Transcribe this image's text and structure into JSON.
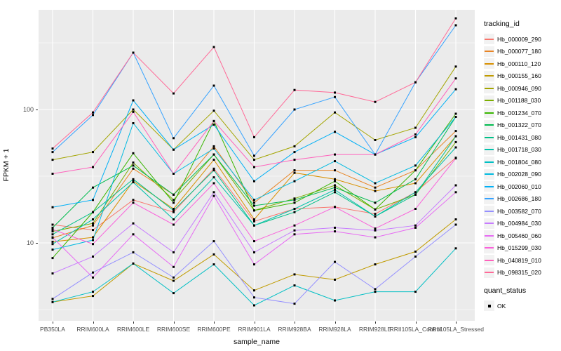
{
  "figure": {
    "x_axis_title": "sample_name",
    "y_axis_title": "FPKM + 1"
  },
  "chart_data": {
    "type": "line",
    "title": "",
    "xlabel": "sample_name",
    "ylabel": "FPKM + 1",
    "y_scale": "log10",
    "y_tick_labels": [
      "100",
      "10"
    ],
    "y_tick_values": [
      100,
      10
    ],
    "y_minor_values": [
      316.2,
      31.62,
      3.162
    ],
    "ylim": [
      2.6,
      560
    ],
    "grid": true,
    "legend_position": "right",
    "legend_title": "tracking_id",
    "point_shape": "filled-square",
    "point_color": "#000000",
    "panel_background": "#EBEBEB",
    "categories": [
      "PB350LA",
      "RRIM600LA",
      "RRIM600LE",
      "RRIM600SE",
      "RRIM600PE",
      "RRIM901LA",
      "RRIM928BA",
      "RRIM928LA",
      "RRIM928LE",
      "RRII105LA_Control",
      "RRII105LA_Stressed"
    ],
    "series": [
      {
        "name": "Hb_000009_290",
        "color": "#F8766D",
        "values": [
          13.7,
          12.5,
          21,
          17,
          36,
          14.5,
          18,
          18.6,
          16.5,
          24,
          43.5
        ]
      },
      {
        "name": "Hb_000077_180",
        "color": "#E88526",
        "values": [
          10.9,
          13.5,
          36,
          23,
          53,
          20,
          35,
          35,
          26,
          35,
          69
        ]
      },
      {
        "name": "Hb_000110_120",
        "color": "#D89000",
        "values": [
          10.2,
          11,
          29,
          18,
          42,
          15,
          33.5,
          30,
          24.5,
          28,
          63
        ]
      },
      {
        "name": "Hb_000155_160",
        "color": "#C09B00",
        "values": [
          3.6,
          4.0,
          7.0,
          5.2,
          8.2,
          4.4,
          5.8,
          5.3,
          6.9,
          8.6,
          15
        ]
      },
      {
        "name": "Hb_000946_090",
        "color": "#A3A500",
        "values": [
          42,
          48,
          100,
          50,
          98,
          42,
          53,
          95,
          59,
          73,
          210
        ]
      },
      {
        "name": "Hb_001188_030",
        "color": "#7CAE00",
        "values": [
          12.2,
          14,
          40,
          21,
          46,
          17.5,
          21.5,
          27,
          17.8,
          23,
          57
        ]
      },
      {
        "name": "Hb_001234_070",
        "color": "#39B600",
        "values": [
          7.7,
          17,
          47,
          20,
          82,
          17.5,
          20,
          29,
          17.8,
          35,
          93
        ]
      },
      {
        "name": "Hb_001322_070",
        "color": "#00BB4E",
        "values": [
          13,
          26,
          38,
          23,
          46,
          19,
          21,
          26,
          20,
          30,
          88
        ]
      },
      {
        "name": "Hb_001431_080",
        "color": "#00C087",
        "values": [
          11.6,
          17,
          30,
          17.5,
          35,
          13.5,
          17,
          24,
          15.8,
          23,
          63
        ]
      },
      {
        "name": "Hb_001718_030",
        "color": "#00C1AB",
        "values": [
          9.8,
          15,
          28.5,
          15,
          31,
          13.5,
          18,
          25,
          15.8,
          24,
          52
        ]
      },
      {
        "name": "Hb_001804_080",
        "color": "#00BFC4",
        "values": [
          3.6,
          4.3,
          7.0,
          4.2,
          6.9,
          3.4,
          4.8,
          3.7,
          4.3,
          4.3,
          9.1
        ]
      },
      {
        "name": "Hb_002028_090",
        "color": "#00BAE0",
        "values": [
          8.9,
          10.5,
          79,
          33,
          51,
          21,
          29,
          41,
          28,
          38,
          88
        ]
      },
      {
        "name": "Hb_002060_010",
        "color": "#00B0F6",
        "values": [
          18.5,
          21,
          117,
          50,
          77,
          29,
          48,
          68,
          46,
          62,
          142
        ]
      },
      {
        "name": "Hb_002686_180",
        "color": "#35A2FF",
        "values": [
          48,
          91,
          267,
          61,
          151,
          45,
          100,
          124,
          46,
          160,
          428
        ]
      },
      {
        "name": "Hb_003582_070",
        "color": "#9590FF",
        "values": [
          3.8,
          6.0,
          8.5,
          5.5,
          10.3,
          3.9,
          3.5,
          7.2,
          4.5,
          7.9,
          13.7
        ]
      },
      {
        "name": "Hb_004984_030",
        "color": "#C77CFF",
        "values": [
          5.9,
          7.9,
          14,
          8.5,
          24,
          8.5,
          12.4,
          13,
          12.4,
          13.5,
          27
        ]
      },
      {
        "name": "Hb_005460_060",
        "color": "#E76BF3",
        "values": [
          11,
          5.5,
          11.6,
          6.6,
          22.5,
          6.9,
          11.6,
          12.2,
          11,
          13,
          24
        ]
      },
      {
        "name": "Hb_015299_030",
        "color": "#FA62DB",
        "values": [
          12.6,
          9.8,
          20,
          13.7,
          28,
          10.3,
          13.5,
          18.6,
          12.8,
          18,
          43
        ]
      },
      {
        "name": "Hb_040819_010",
        "color": "#FF62BC",
        "values": [
          33,
          37,
          96,
          33,
          82,
          37,
          42,
          46,
          46,
          65,
          171
        ]
      },
      {
        "name": "Hb_098315_020",
        "color": "#FF6A98",
        "values": [
          51,
          95,
          267,
          132,
          294,
          62,
          140,
          134,
          114,
          160,
          483
        ]
      }
    ],
    "quant_status": {
      "title": "quant_status",
      "items": [
        {
          "label": "OK",
          "shape": "filled-square",
          "color": "#000000"
        }
      ]
    }
  }
}
